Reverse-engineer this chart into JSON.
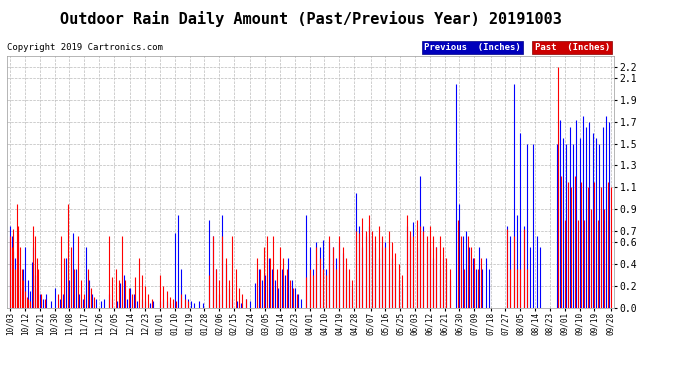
{
  "title": "Outdoor Rain Daily Amount (Past/Previous Year) 20191003",
  "copyright": "Copyright 2019 Cartronics.com",
  "legend_previous": "Previous  (Inches)",
  "legend_past": "Past  (Inches)",
  "legend_previous_bg": "#0000cc",
  "legend_past_bg": "#cc0000",
  "ylim": [
    0.0,
    2.3
  ],
  "yticks": [
    0.0,
    0.2,
    0.4,
    0.6,
    0.7,
    0.9,
    1.1,
    1.3,
    1.5,
    1.7,
    1.9,
    2.1,
    2.2
  ],
  "background_color": "#ffffff",
  "plot_bg": "#ffffff",
  "grid_color": "#bbbbbb",
  "title_fontsize": 11,
  "copyright_fontsize": 6.5,
  "x_labels": [
    "10/03",
    "10/12",
    "10/21",
    "10/30",
    "11/08",
    "11/17",
    "11/26",
    "12/05",
    "12/14",
    "12/23",
    "01/01",
    "01/10",
    "01/19",
    "01/28",
    "02/06",
    "02/15",
    "02/24",
    "03/05",
    "03/14",
    "03/23",
    "04/01",
    "04/10",
    "04/19",
    "04/28",
    "05/07",
    "05/16",
    "05/25",
    "06/03",
    "06/12",
    "06/21",
    "06/30",
    "07/09",
    "07/18",
    "07/27",
    "08/05",
    "08/14",
    "08/23",
    "09/01",
    "09/10",
    "09/19",
    "09/28"
  ],
  "line_width": 0.8,
  "figwidth": 6.9,
  "figheight": 3.75,
  "dpi": 100
}
